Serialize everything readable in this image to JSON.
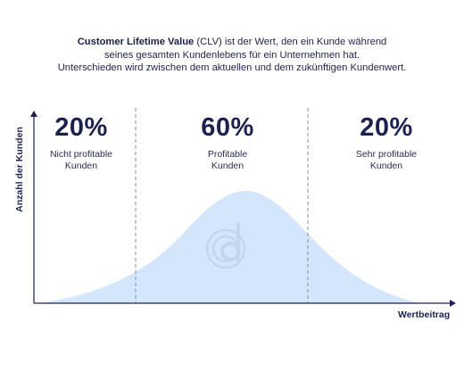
{
  "intro": {
    "term": "Customer Lifetime Value",
    "line1_rest": " (CLV) ist der Wert, den ein Kunde während",
    "line2": "seines gesamten Kundenlebens für ein Unternehmen hat.",
    "line3": "Unterschieden wird zwischen dem aktuellen und dem zukünftigen Kundenwert."
  },
  "segments": [
    {
      "percent": "20%",
      "label": "Nicht profitable\nKunden"
    },
    {
      "percent": "60%",
      "label": "Profitable\nKunden"
    },
    {
      "percent": "20%",
      "label": "Sehr profitable\nKunden"
    }
  ],
  "axes": {
    "y_label": "Anzahl der Kunden",
    "x_label": "Wertbeitrag"
  },
  "colors": {
    "curve_fill": "#d4e6fb",
    "axis": "#1d2150",
    "divider": "#8a8c99",
    "watermark": "#c3d6ee"
  },
  "watermark_icon": "cd-logo-icon"
}
